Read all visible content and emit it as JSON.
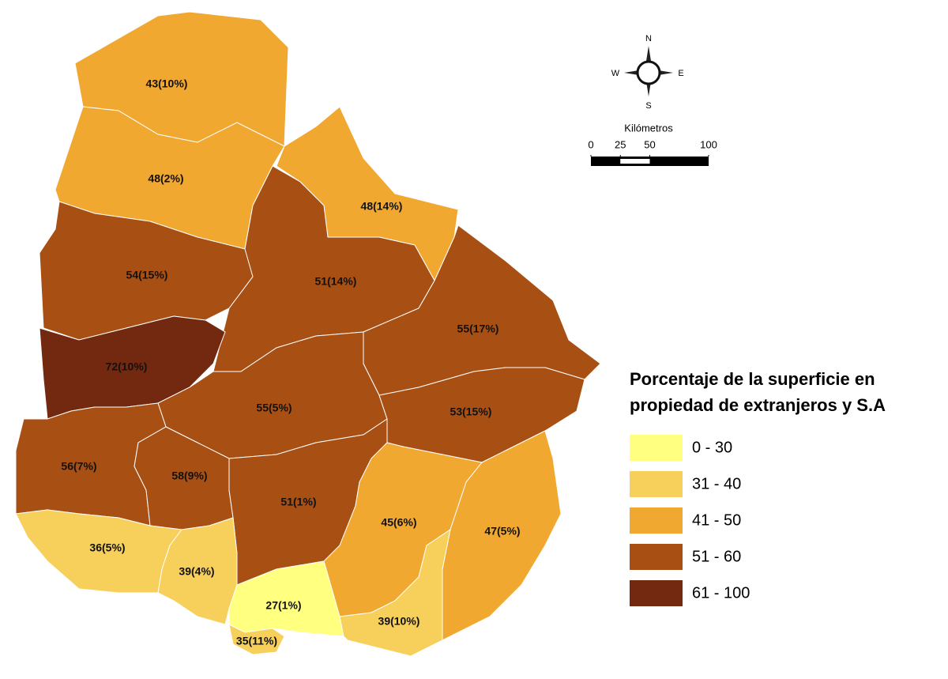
{
  "map": {
    "regions": [
      {
        "label": "43(10%)",
        "color": "#f0a830"
      },
      {
        "label": "48(2%)",
        "color": "#f0a830"
      },
      {
        "label": "48(14%)",
        "color": "#f0a830"
      },
      {
        "label": "54(15%)",
        "color": "#a84f14"
      },
      {
        "label": "51(14%)",
        "color": "#a84f14"
      },
      {
        "label": "55(17%)",
        "color": "#a84f14"
      },
      {
        "label": "72(10%)",
        "color": "#732910"
      },
      {
        "label": "55(5%)",
        "color": "#a84f14"
      },
      {
        "label": "53(15%)",
        "color": "#a84f14"
      },
      {
        "label": "56(7%)",
        "color": "#a84f14"
      },
      {
        "label": "58(9%)",
        "color": "#a84f14"
      },
      {
        "label": "51(1%)",
        "color": "#a84f14"
      },
      {
        "label": "45(6%)",
        "color": "#f0a830"
      },
      {
        "label": "47(5%)",
        "color": "#f0a830"
      },
      {
        "label": "36(5%)",
        "color": "#f7cf5b"
      },
      {
        "label": "39(4%)",
        "color": "#f7cf5b"
      },
      {
        "label": "27(1%)",
        "color": "#ffff80"
      },
      {
        "label": "35(11%)",
        "color": "#f7cf5b"
      },
      {
        "label": "39(10%)",
        "color": "#f7cf5b"
      }
    ],
    "legend": {
      "title": [
        "Porcentaje de la superficie en",
        "propiedad de extranjeros y S.A"
      ],
      "classes": [
        {
          "label": "0 - 30",
          "color": "#ffff80"
        },
        {
          "label": "31 - 40",
          "color": "#f7cf5b"
        },
        {
          "label": "41 - 50",
          "color": "#f0a830"
        },
        {
          "label": "51 - 60",
          "color": "#a84f14"
        },
        {
          "label": "61 - 100",
          "color": "#732910"
        }
      ]
    },
    "compass": {
      "north": "N",
      "south": "S",
      "east": "E",
      "west": "W"
    },
    "scale": {
      "title": "Kilómetros",
      "ticks": [
        0,
        25,
        50,
        100
      ]
    }
  }
}
